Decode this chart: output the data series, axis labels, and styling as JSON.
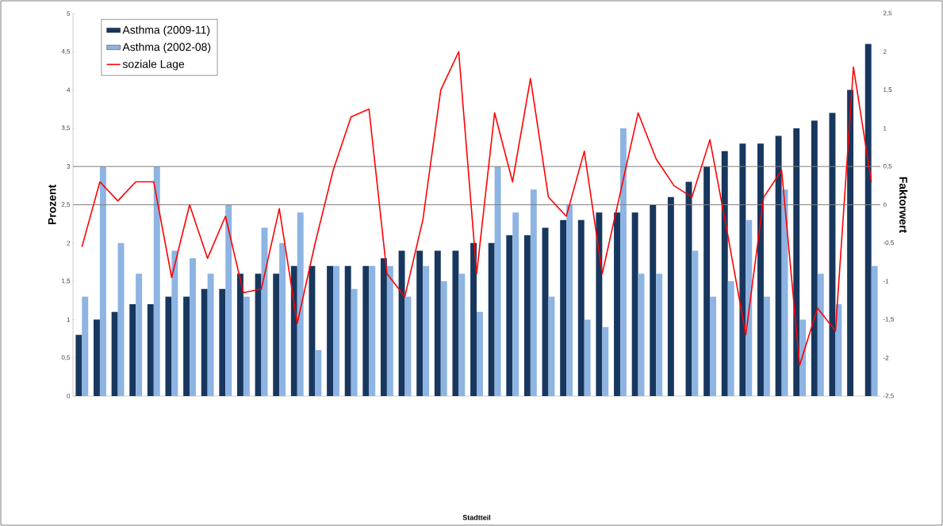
{
  "chart_data": {
    "type": "bar",
    "annotations": [
      "Stadtteil"
    ],
    "ylabel": "Prozent",
    "y2label": "Faktorwert",
    "categories": [
      null,
      null,
      null,
      null,
      null,
      null,
      null,
      null,
      null,
      null,
      null,
      null,
      null,
      null,
      null,
      null,
      null,
      null,
      null,
      null,
      null,
      null,
      null,
      null,
      null,
      null,
      null,
      null,
      null,
      null,
      null,
      null,
      null,
      null,
      null,
      null,
      null,
      null,
      null,
      null,
      null,
      null,
      null,
      null,
      null
    ],
    "series": [
      {
        "name": "Asthma (2009-11)",
        "color": "#17375e",
        "values": [
          0.8,
          1.0,
          1.1,
          1.2,
          1.2,
          1.3,
          1.3,
          1.4,
          1.4,
          1.6,
          1.6,
          1.6,
          1.7,
          1.7,
          1.7,
          1.7,
          1.7,
          1.8,
          1.9,
          1.9,
          1.9,
          1.9,
          2.0,
          2.0,
          2.1,
          2.1,
          2.2,
          2.3,
          2.3,
          2.4,
          2.4,
          2.4,
          2.5,
          2.6,
          2.8,
          3.0,
          3.2,
          3.3,
          3.3,
          3.4,
          3.5,
          3.6,
          3.7,
          4.0,
          4.6
        ]
      },
      {
        "name": "Asthma (2002-08)",
        "color": "#8db4e2",
        "values": [
          1.3,
          3.0,
          2.0,
          1.6,
          3.0,
          1.9,
          1.8,
          1.6,
          2.5,
          1.3,
          2.2,
          2.0,
          2.4,
          0.6,
          1.7,
          1.4,
          1.7,
          1.7,
          1.3,
          1.7,
          1.5,
          1.6,
          1.1,
          3.0,
          2.4,
          2.7,
          1.3,
          2.5,
          1.0,
          0.9,
          3.5,
          1.6,
          1.6,
          null,
          1.9,
          1.3,
          1.5,
          2.3,
          1.3,
          2.7,
          1.0,
          1.6,
          1.2,
          null,
          1.7
        ]
      },
      {
        "name": "soziale Lage",
        "type": "line",
        "axis": "y2",
        "color": "#ff0000",
        "values": [
          -0.55,
          0.3,
          0.05,
          0.3,
          0.3,
          -0.95,
          0.0,
          -0.7,
          -0.15,
          -1.15,
          -1.1,
          -0.05,
          -1.55,
          -0.5,
          0.45,
          1.15,
          1.25,
          -0.9,
          -1.2,
          -0.2,
          1.5,
          2.0,
          -0.9,
          1.2,
          0.3,
          1.65,
          0.1,
          -0.15,
          0.7,
          -0.9,
          0.15,
          1.2,
          0.6,
          0.25,
          0.1,
          0.85,
          -0.4,
          -1.7,
          0.1,
          0.45,
          -2.1,
          -1.35,
          -1.65,
          1.8,
          0.3
        ]
      }
    ],
    "ylim": [
      0,
      5
    ],
    "yticks": [
      0,
      {
        "value": 0.5,
        "label": "0,5"
      },
      1,
      {
        "value": 1.5,
        "label": "1,5"
      },
      2,
      {
        "value": 2.5,
        "label": "2,5"
      },
      3,
      {
        "value": 3.5,
        "label": "3,5"
      },
      4,
      {
        "value": 4.5,
        "label": "4,5"
      },
      5
    ],
    "y2lim": [
      -2.5,
      2.5
    ],
    "y2ticks": [
      {
        "value": -2.5,
        "label": "-2,5"
      },
      -2,
      {
        "value": -1.5,
        "label": "-1,5"
      },
      -1,
      {
        "value": -0.5,
        "label": "-0,5"
      },
      0,
      {
        "value": 0.5,
        "label": "0,5"
      },
      1,
      {
        "value": 1.5,
        "label": "1,5"
      },
      2,
      {
        "value": 2.5,
        "label": "2,5"
      }
    ],
    "ref_lines": [
      {
        "axis": "y2",
        "value": 0,
        "color": "#808080"
      },
      {
        "axis": "y2",
        "value": 0.5,
        "color": "#808080"
      }
    ],
    "legend": "top left",
    "line_style": "solid",
    "marker": "none"
  }
}
